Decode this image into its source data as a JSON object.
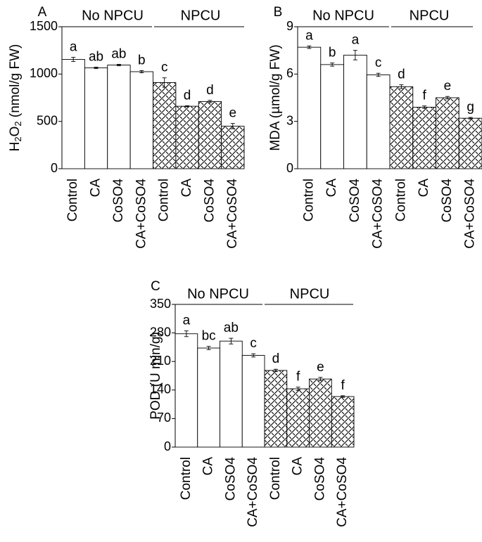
{
  "chart_data": [
    {
      "panel": "A",
      "type": "bar",
      "ylabel_main": "H",
      "ylabel_sub": "2",
      "ylabel_mid": "O",
      "ylabel_sub2": "2",
      "ylabel_rest": " (nmol/g FW)",
      "ylim": [
        0,
        1500
      ],
      "yticks": [
        0,
        500,
        1000,
        1500
      ],
      "groups": [
        "No NPCU",
        "NPCU"
      ],
      "categories": [
        "Control",
        "CA",
        "CoSO4",
        "CA+CoSO4",
        "Control",
        "CA",
        "CoSO4",
        "CA+CoSO4"
      ],
      "values": [
        1155,
        1065,
        1095,
        1025,
        910,
        660,
        710,
        450
      ],
      "errors": [
        22,
        8,
        8,
        12,
        50,
        5,
        12,
        28
      ],
      "letters": [
        "a",
        "ab",
        "ab",
        "b",
        "c",
        "d",
        "d",
        "e"
      ],
      "fill": [
        "plain",
        "plain",
        "plain",
        "plain",
        "hatch",
        "hatch",
        "hatch",
        "hatch"
      ]
    },
    {
      "panel": "B",
      "type": "bar",
      "ylabel_main": "MDA (µmol/g FW)",
      "ylim": [
        0,
        9
      ],
      "yticks": [
        0,
        3,
        6,
        9
      ],
      "groups": [
        "No NPCU",
        "NPCU"
      ],
      "categories": [
        "Control",
        "CA",
        "CoSO4",
        "CA+CoSO4",
        "Control",
        "CA",
        "CoSO4",
        "CA+CoSO4"
      ],
      "values": [
        7.7,
        6.6,
        7.2,
        5.95,
        5.2,
        3.9,
        4.5,
        3.2
      ],
      "errors": [
        0.08,
        0.1,
        0.3,
        0.1,
        0.12,
        0.08,
        0.08,
        0.05
      ],
      "letters": [
        "a",
        "b",
        "a",
        "c",
        "d",
        "f",
        "e",
        "g"
      ],
      "fill": [
        "plain",
        "plain",
        "plain",
        "plain",
        "hatch",
        "hatch",
        "hatch",
        "hatch"
      ]
    },
    {
      "panel": "C",
      "type": "bar",
      "ylabel_main": "POD (U min/g)",
      "ylim": [
        0,
        350
      ],
      "yticks": [
        0,
        70,
        140,
        210,
        280,
        350
      ],
      "groups": [
        "No NPCU",
        "NPCU"
      ],
      "categories": [
        "Control",
        "CA",
        "CoSO4",
        "CA+CoSO4",
        "Control",
        "CA",
        "CoSO4",
        "CA+CoSO4"
      ],
      "values": [
        278,
        243,
        260,
        225,
        188,
        143,
        167,
        124
      ],
      "errors": [
        7,
        4,
        7,
        4,
        3,
        4,
        4,
        2
      ],
      "letters": [
        "a",
        "bc",
        "ab",
        "c",
        "d",
        "f",
        "e",
        "f"
      ],
      "fill": [
        "plain",
        "plain",
        "plain",
        "plain",
        "hatch",
        "hatch",
        "hatch",
        "hatch"
      ]
    }
  ]
}
